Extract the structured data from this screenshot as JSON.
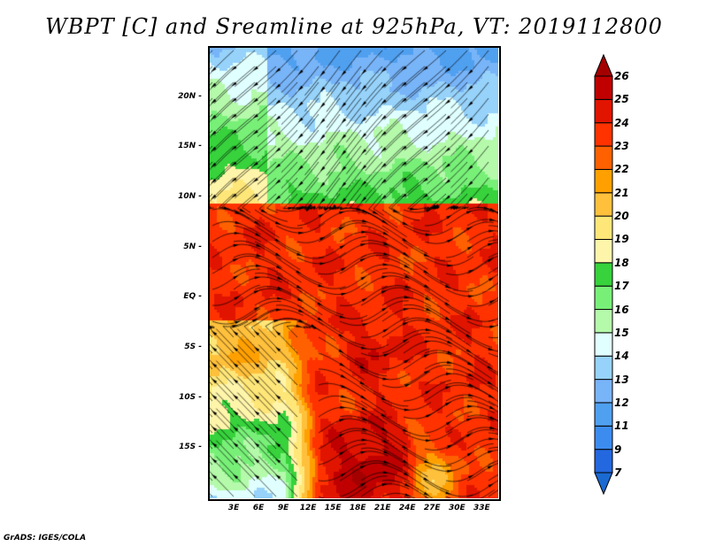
{
  "title": "WBPT [C] and Sreamline at 925hPa, VT: 2019112800",
  "lat_ticks": [
    {
      "label": "20N",
      "lat": 20
    },
    {
      "label": "15N",
      "lat": 15
    },
    {
      "label": "10N",
      "lat": 10
    },
    {
      "label": "5N",
      "lat": 5
    },
    {
      "label": "EQ",
      "lat": 0
    },
    {
      "label": "5S",
      "lat": -5
    },
    {
      "label": "10S",
      "lat": -10
    },
    {
      "label": "15S",
      "lat": -15
    }
  ],
  "lon_ticks": [
    {
      "label": "3E",
      "lon": 3
    },
    {
      "label": "6E",
      "lon": 6
    },
    {
      "label": "9E",
      "lon": 9
    },
    {
      "label": "12E",
      "lon": 12
    },
    {
      "label": "15E",
      "lon": 15
    },
    {
      "label": "18E",
      "lon": 18
    },
    {
      "label": "21E",
      "lon": 21
    },
    {
      "label": "24E",
      "lon": 24
    },
    {
      "label": "27E",
      "lon": 27
    },
    {
      "label": "30E",
      "lon": 30
    },
    {
      "label": "33E",
      "lon": 33
    }
  ],
  "domain": {
    "lon": [
      0,
      35
    ],
    "lat": [
      -20,
      25
    ]
  },
  "colorbar": {
    "labels": [
      "7",
      "9",
      "11",
      "12",
      "13",
      "14",
      "15",
      "16",
      "17",
      "18",
      "19",
      "20",
      "21",
      "22",
      "23",
      "24",
      "25",
      "26"
    ],
    "levels": [
      7,
      9,
      11,
      12,
      13,
      14,
      15,
      16,
      17,
      18,
      19,
      20,
      21,
      22,
      23,
      24,
      25,
      26
    ],
    "colors": [
      "#1a6ad2",
      "#2468e0",
      "#3c8cf0",
      "#50a0f0",
      "#78b4f8",
      "#96d2fa",
      "#e0ffff",
      "#b4faaa",
      "#78f078",
      "#37d23c",
      "#fff5aa",
      "#ffe678",
      "#ffc03c",
      "#ffa000",
      "#ff6000",
      "#ff3200",
      "#e11400",
      "#c00000",
      "#a50000"
    ]
  },
  "footer": "GrADS: IGES/COLA"
}
